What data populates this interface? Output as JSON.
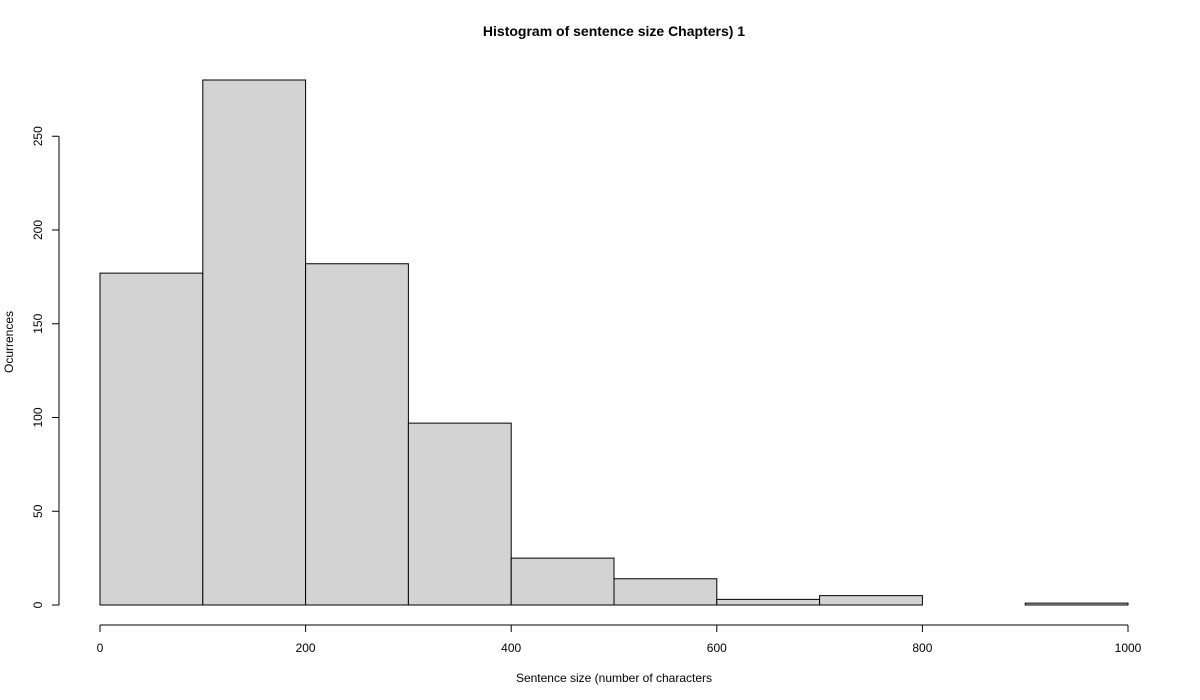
{
  "chart_data": {
    "type": "bar",
    "title": "Histogram of sentence size Chapters) 1",
    "xlabel": "Sentence size (number of characters",
    "ylabel": "Ocurrences",
    "bins": [
      {
        "start": 0,
        "end": 100,
        "count": 177
      },
      {
        "start": 100,
        "end": 200,
        "count": 280
      },
      {
        "start": 200,
        "end": 300,
        "count": 182
      },
      {
        "start": 300,
        "end": 400,
        "count": 97
      },
      {
        "start": 400,
        "end": 500,
        "count": 25
      },
      {
        "start": 500,
        "end": 600,
        "count": 14
      },
      {
        "start": 600,
        "end": 700,
        "count": 3
      },
      {
        "start": 700,
        "end": 800,
        "count": 5
      },
      {
        "start": 800,
        "end": 900,
        "count": 0
      },
      {
        "start": 900,
        "end": 1000,
        "count": 1
      }
    ],
    "xlim": [
      0,
      1000
    ],
    "ylim": [
      0,
      280
    ],
    "x_ticks": [
      0,
      200,
      400,
      600,
      800,
      1000
    ],
    "y_ticks": [
      0,
      50,
      100,
      150,
      200,
      250
    ],
    "bar_fill": "#d3d3d3",
    "bar_stroke": "#000000",
    "grid": false
  }
}
